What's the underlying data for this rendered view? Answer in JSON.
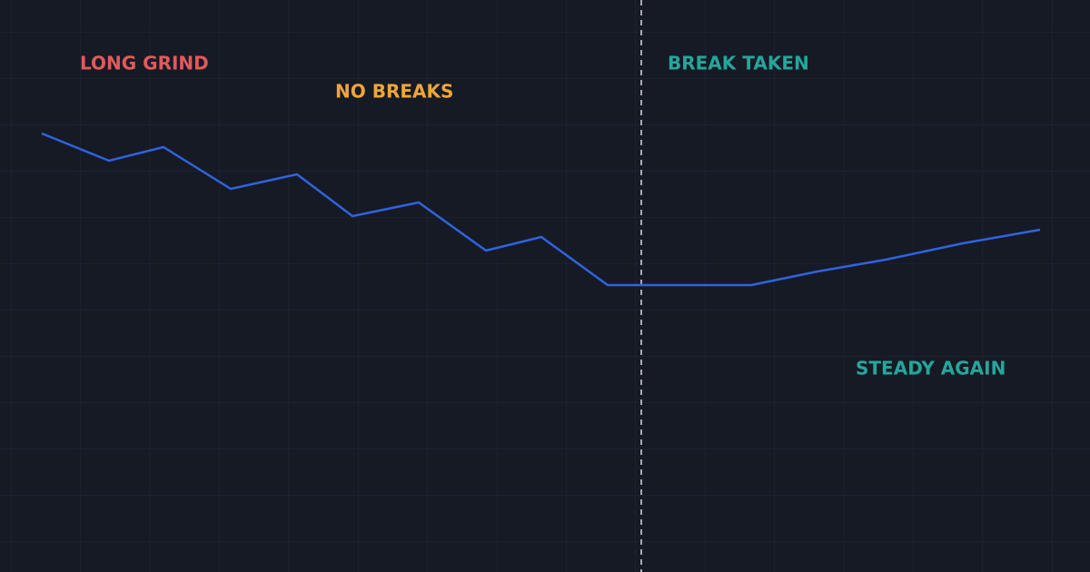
{
  "chart_data": {
    "type": "line",
    "x": [
      4.6,
      12,
      18,
      25.4,
      32.7,
      38.8,
      46.1,
      53.5,
      59.6,
      66.9,
      82.7,
      90,
      97.5,
      106,
      114.5
    ],
    "values": [
      48.3,
      45.3,
      46.8,
      42.2,
      43.8,
      39.2,
      40.7,
      35.4,
      36.9,
      31.6,
      31.6,
      33.1,
      34.4,
      36.2,
      37.7
    ],
    "color": "#2f63e0",
    "xlim": [
      0,
      120
    ],
    "ylim": [
      0,
      63
    ],
    "break_x": 70.6,
    "annotations": [
      {
        "text": "LONG GRIND",
        "color": "#e05a5a"
      },
      {
        "text": "NO BREAKS",
        "color": "#f0a53a"
      },
      {
        "text": "BREAK TAKEN",
        "color": "#26a69a"
      },
      {
        "text": "STEADY AGAIN",
        "color": "#26a69a"
      }
    ]
  }
}
